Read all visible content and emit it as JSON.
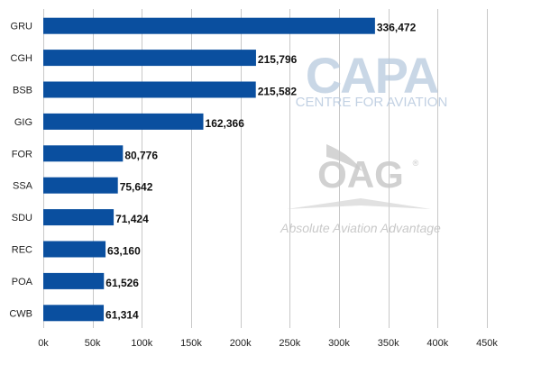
{
  "colors": {
    "bar": "#0a4f9f",
    "grid": "#c8c8c8",
    "watermark_capa": "#b7c9de",
    "watermark_oag": "#c9c9c9"
  },
  "watermarks": {
    "capa_logo": "CAPA",
    "capa_subtitle": "CENTRE FOR AVIATION",
    "oag_logo": "OAG",
    "oag_registered": "®",
    "oag_tagline": "Absolute Aviation Advantage"
  },
  "chart_data": {
    "type": "bar",
    "orientation": "horizontal",
    "categories": [
      "GRU",
      "CGH",
      "BSB",
      "GIG",
      "FOR",
      "SSA",
      "SDU",
      "REC",
      "POA",
      "CWB"
    ],
    "values": [
      336472,
      215796,
      215582,
      162366,
      80776,
      75642,
      71424,
      63160,
      61526,
      61314
    ],
    "data_labels": [
      "336,472",
      "215,796",
      "215,582",
      "162,366",
      "80,776",
      "75,642",
      "71,424",
      "63,160",
      "61,526",
      "61,314"
    ],
    "x_ticks": [
      0,
      50000,
      100000,
      150000,
      200000,
      250000,
      300000,
      350000,
      400000,
      450000
    ],
    "x_tick_labels": [
      "0k",
      "50k",
      "100k",
      "150k",
      "200k",
      "250k",
      "300k",
      "350k",
      "400k",
      "450k"
    ],
    "xlim": [
      0,
      450000
    ],
    "grid": true,
    "legend": false
  }
}
